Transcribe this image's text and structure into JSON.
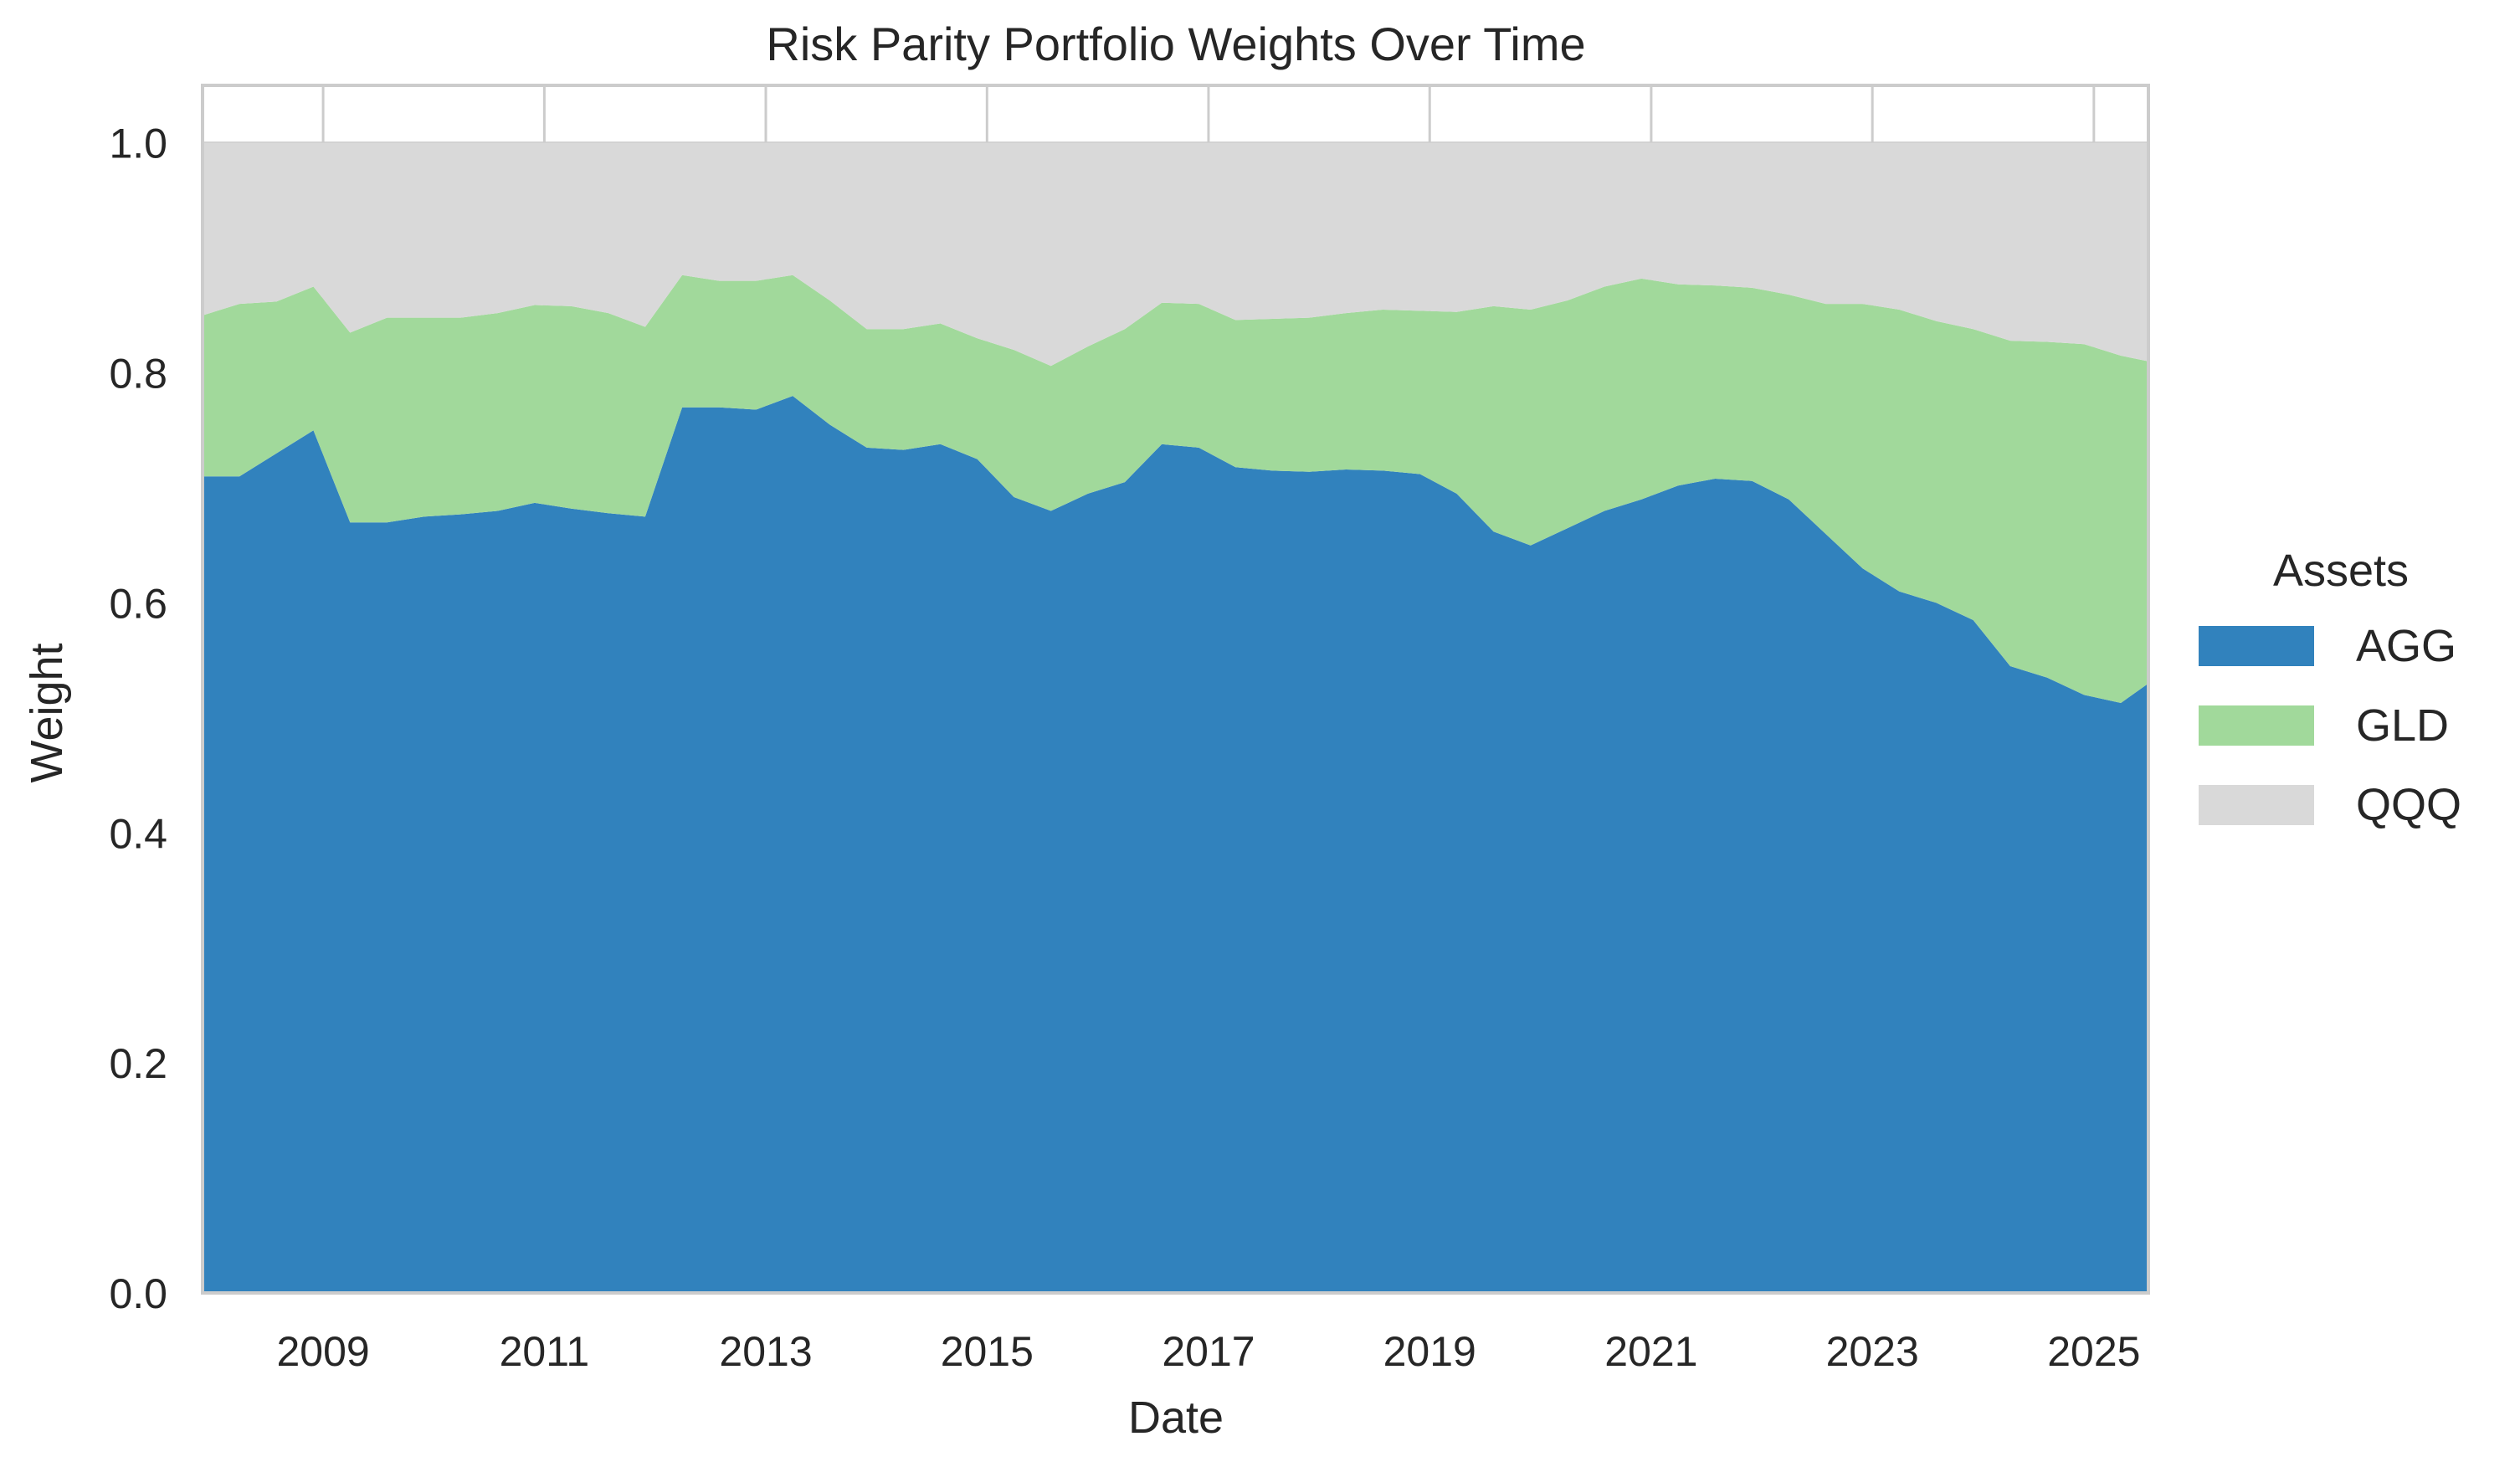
{
  "chart_data": {
    "type": "area",
    "stacked": true,
    "title": "Risk Parity Portfolio Weights Over Time",
    "xlabel": "Date",
    "ylabel": "Weight",
    "xlim": [
      "2007-11-30",
      "2025-06-30"
    ],
    "ylim": [
      0,
      1.05
    ],
    "x_ticks": [
      "2009",
      "2011",
      "2013",
      "2015",
      "2017",
      "2019",
      "2021",
      "2023",
      "2025"
    ],
    "y_ticks": [
      "0.0",
      "0.2",
      "0.4",
      "0.6",
      "0.8",
      "1.0"
    ],
    "grid": true,
    "legend": {
      "title": "Assets",
      "position": "right"
    },
    "x": [
      "2007-11-30",
      "2008-03-31",
      "2008-07-31",
      "2008-11-30",
      "2009-03-31",
      "2009-07-31",
      "2009-11-30",
      "2010-03-31",
      "2010-07-31",
      "2010-11-30",
      "2011-03-31",
      "2011-07-31",
      "2011-11-30",
      "2012-03-31",
      "2012-07-31",
      "2012-11-30",
      "2013-03-31",
      "2013-07-31",
      "2013-11-30",
      "2014-03-31",
      "2014-07-31",
      "2014-11-30",
      "2015-03-31",
      "2015-07-31",
      "2015-11-30",
      "2016-03-31",
      "2016-07-31",
      "2016-11-30",
      "2017-03-31",
      "2017-07-31",
      "2017-11-30",
      "2018-03-31",
      "2018-07-31",
      "2018-11-30",
      "2019-03-31",
      "2019-07-31",
      "2019-11-30",
      "2020-03-31",
      "2020-07-31",
      "2020-11-30",
      "2021-03-31",
      "2021-07-31",
      "2021-11-30",
      "2022-03-31",
      "2022-07-31",
      "2022-11-30",
      "2023-03-31",
      "2023-07-31",
      "2023-11-30",
      "2024-03-31",
      "2024-07-31",
      "2024-11-30",
      "2025-03-31",
      "2025-06-30"
    ],
    "series": [
      {
        "name": "AGG",
        "color": "#3182bd",
        "values": [
          0.71,
          0.71,
          0.73,
          0.75,
          0.67,
          0.67,
          0.675,
          0.677,
          0.68,
          0.687,
          0.682,
          0.678,
          0.675,
          0.77,
          0.77,
          0.768,
          0.78,
          0.755,
          0.735,
          0.733,
          0.738,
          0.725,
          0.692,
          0.68,
          0.695,
          0.705,
          0.738,
          0.735,
          0.718,
          0.715,
          0.714,
          0.716,
          0.715,
          0.712,
          0.695,
          0.662,
          0.65,
          0.665,
          0.68,
          0.69,
          0.702,
          0.708,
          0.706,
          0.69,
          0.66,
          0.63,
          0.61,
          0.6,
          0.585,
          0.545,
          0.535,
          0.52,
          0.513,
          0.53
        ]
      },
      {
        "name": "GLD",
        "color": "#a1d99b",
        "values": [
          0.14,
          0.15,
          0.132,
          0.125,
          0.165,
          0.178,
          0.173,
          0.171,
          0.172,
          0.172,
          0.176,
          0.174,
          0.165,
          0.115,
          0.11,
          0.112,
          0.105,
          0.108,
          0.103,
          0.105,
          0.105,
          0.105,
          0.128,
          0.126,
          0.128,
          0.133,
          0.123,
          0.125,
          0.128,
          0.132,
          0.134,
          0.136,
          0.14,
          0.142,
          0.158,
          0.196,
          0.205,
          0.198,
          0.195,
          0.192,
          0.175,
          0.168,
          0.168,
          0.178,
          0.2,
          0.23,
          0.245,
          0.245,
          0.253,
          0.283,
          0.292,
          0.305,
          0.302,
          0.28
        ]
      },
      {
        "name": "QQQ",
        "color": "#d9d9d9",
        "values": [
          0.15,
          0.14,
          0.138,
          0.125,
          0.165,
          0.152,
          0.152,
          0.152,
          0.148,
          0.141,
          0.142,
          0.148,
          0.16,
          0.115,
          0.12,
          0.12,
          0.115,
          0.137,
          0.162,
          0.162,
          0.157,
          0.17,
          0.18,
          0.194,
          0.177,
          0.162,
          0.139,
          0.14,
          0.154,
          0.153,
          0.152,
          0.148,
          0.145,
          0.146,
          0.147,
          0.142,
          0.145,
          0.137,
          0.125,
          0.118,
          0.123,
          0.124,
          0.126,
          0.132,
          0.14,
          0.14,
          0.145,
          0.155,
          0.162,
          0.172,
          0.173,
          0.175,
          0.185,
          0.19
        ]
      }
    ]
  }
}
